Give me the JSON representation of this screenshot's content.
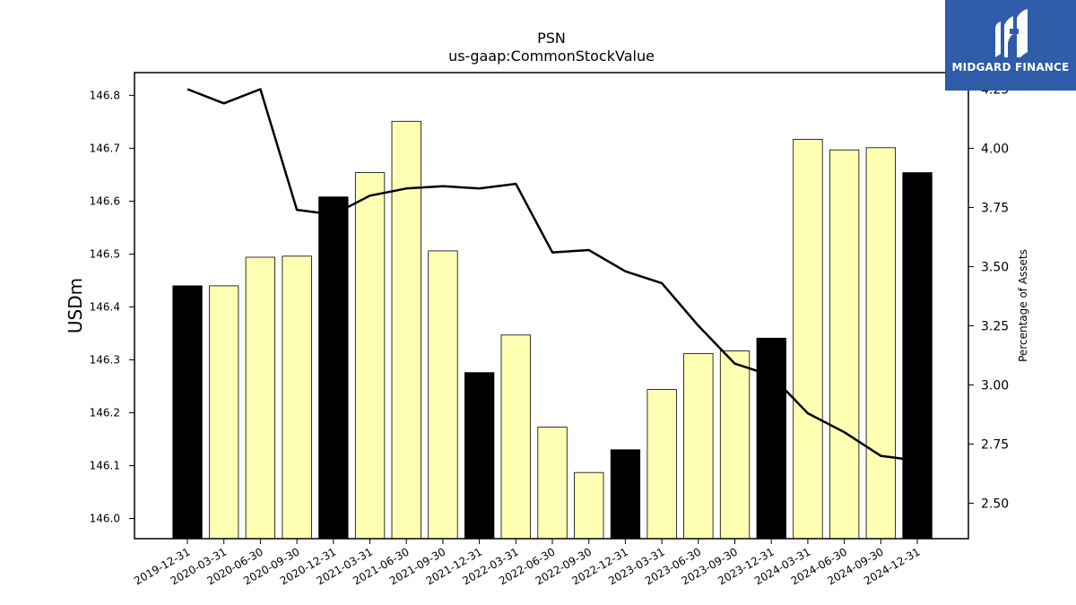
{
  "chart_data": {
    "type": "bar",
    "title": "PSN",
    "subtitle": "us-gaap:CommonStockValue",
    "ylabel": "USDm",
    "ylabel_right": "Percentage of Assets",
    "categories": [
      "2019-12-31",
      "2020-03-31",
      "2020-06-30",
      "2020-09-30",
      "2020-12-31",
      "2021-03-31",
      "2021-06-30",
      "2021-09-30",
      "2021-12-31",
      "2022-03-31",
      "2022-06-30",
      "2022-09-30",
      "2022-12-31",
      "2023-03-31",
      "2023-06-30",
      "2023-09-30",
      "2023-12-31",
      "2024-03-31",
      "2024-06-30",
      "2024-09-30",
      "2024-12-31"
    ],
    "series": [
      {
        "type": "bar",
        "axis": "left",
        "values": [
          146.44,
          146.44,
          146.494,
          146.496,
          146.608,
          146.654,
          146.751,
          146.506,
          146.276,
          146.347,
          146.173,
          146.087,
          146.13,
          146.244,
          146.312,
          146.317,
          146.341,
          146.717,
          146.697,
          146.701,
          146.654
        ],
        "highlight": [
          true,
          false,
          false,
          false,
          true,
          false,
          false,
          false,
          true,
          false,
          false,
          false,
          true,
          false,
          false,
          false,
          true,
          false,
          false,
          false,
          true
        ],
        "color": "#ffffb3",
        "highlight_color": "#000000"
      },
      {
        "type": "line",
        "axis": "right",
        "values": [
          4.25,
          4.19,
          4.25,
          3.74,
          3.72,
          3.8,
          3.83,
          3.84,
          3.83,
          3.85,
          3.56,
          3.57,
          3.48,
          3.43,
          3.25,
          3.09,
          3.04,
          2.88,
          2.8,
          2.7,
          2.68
        ],
        "color": "#000000"
      }
    ],
    "ylim": [
      145.962,
      146.843
    ],
    "ylim_right": [
      2.35,
      4.32
    ],
    "yticks": [
      "146.0",
      "146.1",
      "146.2",
      "146.3",
      "146.4",
      "146.5",
      "146.6",
      "146.7",
      "146.8"
    ],
    "yticks_right": [
      "2.50",
      "2.75",
      "3.00",
      "3.25",
      "3.50",
      "3.75",
      "4.00",
      "4.25"
    ],
    "grid": false
  },
  "logo": {
    "text": "MIDGARD FINANCE",
    "color": "#2e5ca8"
  }
}
